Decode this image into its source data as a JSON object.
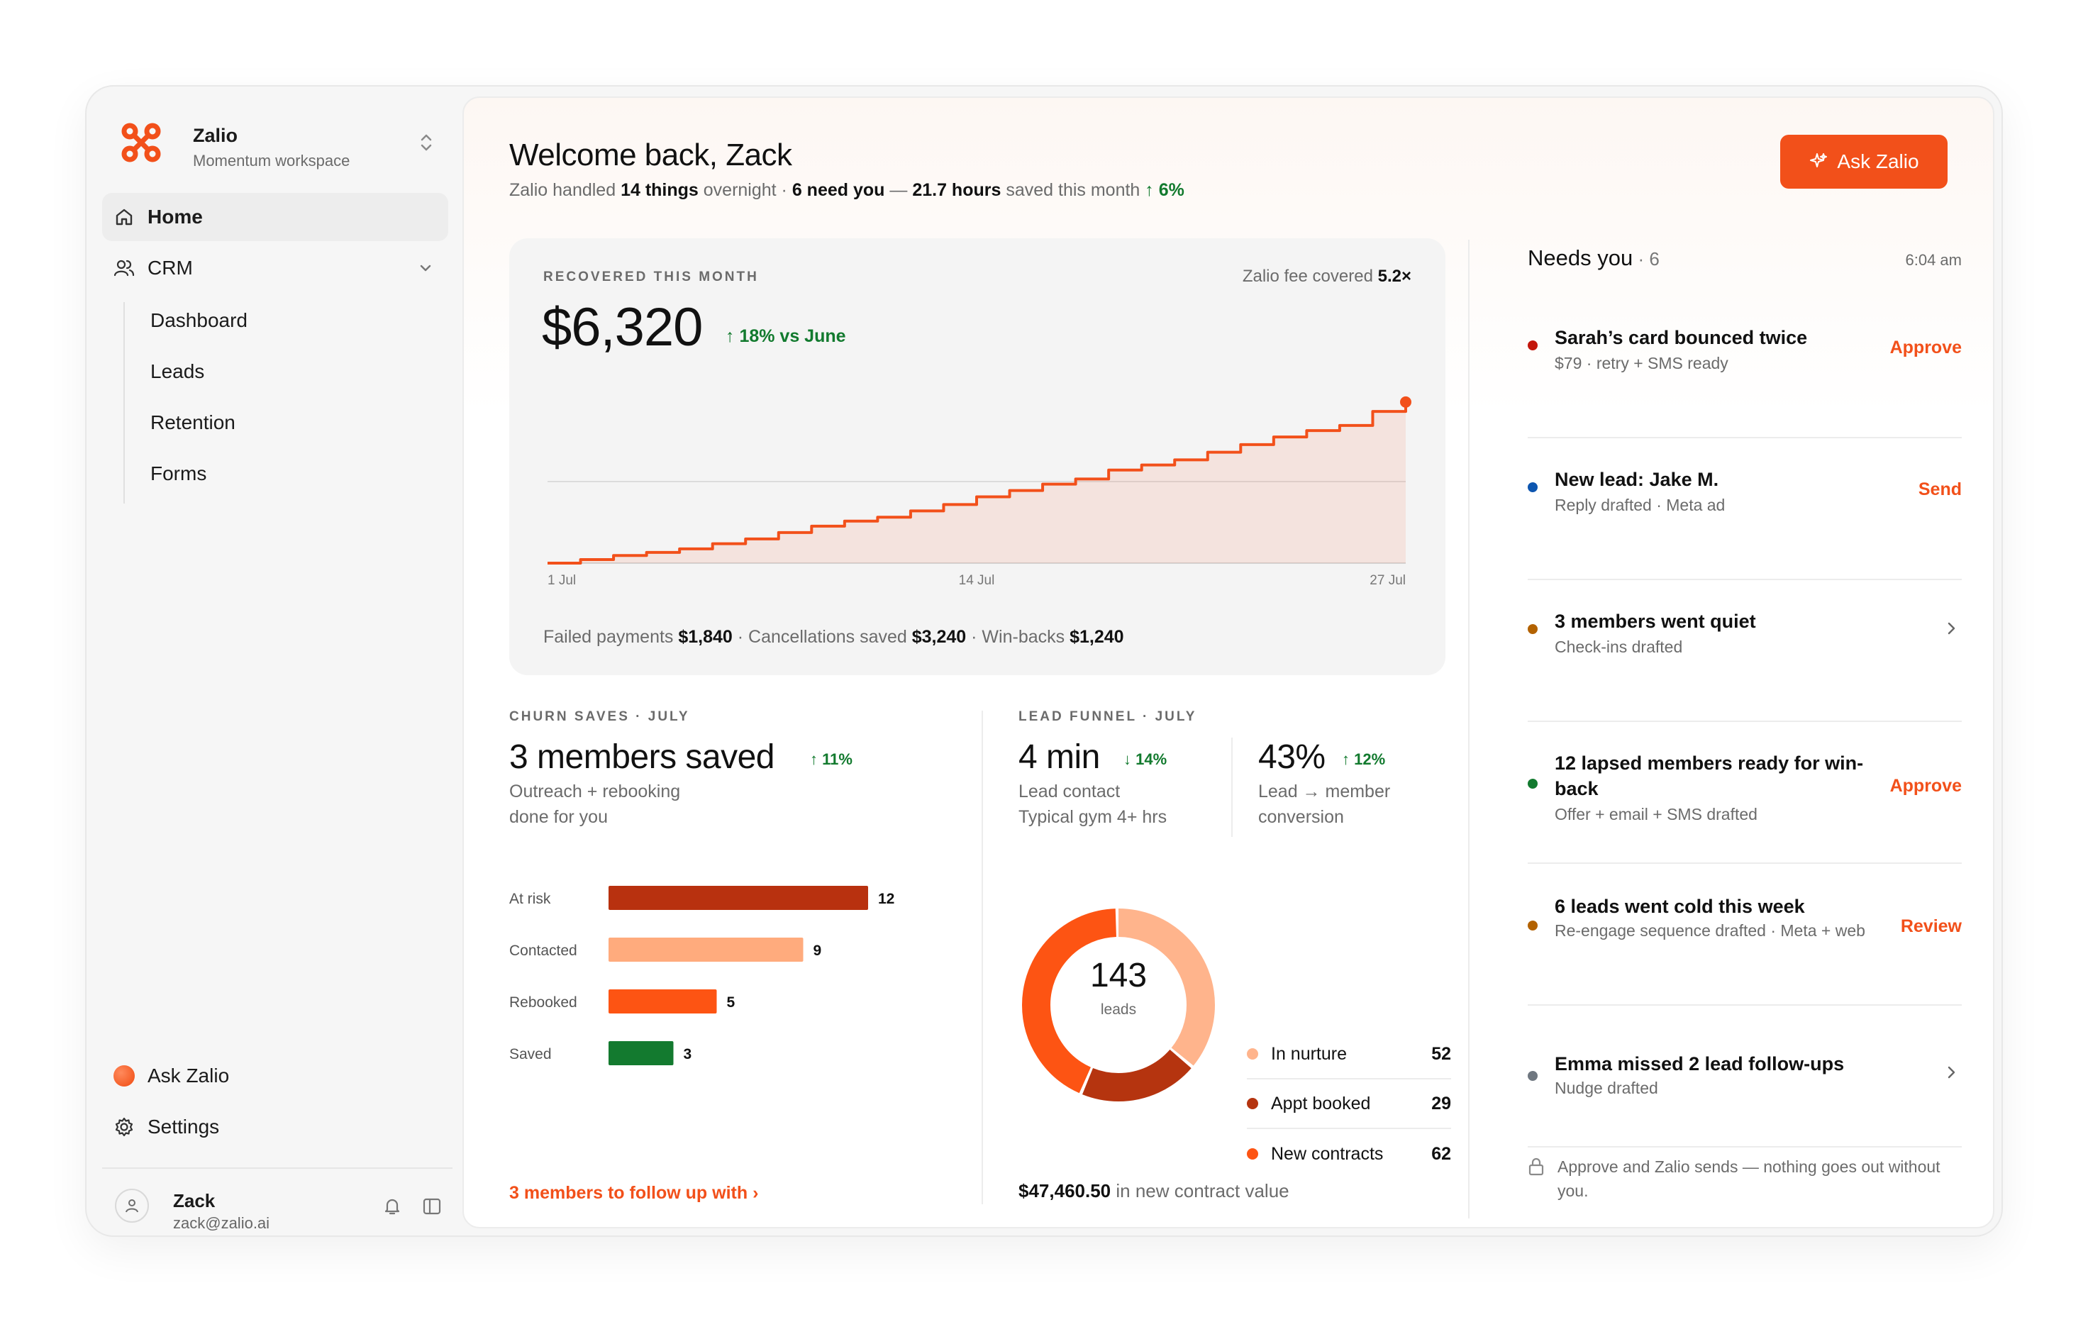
{
  "workspace": {
    "name": "Zalio",
    "subtitle": "Momentum workspace"
  },
  "nav": {
    "home": "Home",
    "crm": "CRM",
    "crm_items": [
      "Dashboard",
      "Leads",
      "Retention",
      "Forms"
    ],
    "ask": "Ask Zalio",
    "settings": "Settings"
  },
  "user": {
    "name": "Zack",
    "email": "zack@zalio.ai"
  },
  "header": {
    "title": "Welcome back, Zack",
    "sub_a": "Zalio handled ",
    "sub_b": "14 things",
    "sub_c": " overnight · ",
    "sub_d": "6 need you",
    "sub_e": " — ",
    "sub_f": "21.7 hours",
    "sub_g": " saved this month ",
    "sub_delta": "↑ 6%",
    "ask_button": "Ask Zalio"
  },
  "recovered": {
    "kicker": "RECOVERED THIS MONTH",
    "fee_label": "Zalio fee covered ",
    "fee_value": "5.2×",
    "amount": "$6,320",
    "delta": "↑ 18% vs June",
    "legend_a": "Failed payments ",
    "legend_a_v": "$1,840",
    "legend_b": " · Cancellations saved ",
    "legend_b_v": "$3,240",
    "legend_c": " · Win-backs ",
    "legend_c_v": "$1,240"
  },
  "chart_data": {
    "type": "area",
    "x": [
      1,
      2,
      3,
      4,
      5,
      6,
      7,
      8,
      9,
      10,
      11,
      12,
      13,
      14,
      15,
      16,
      17,
      18,
      19,
      20,
      21,
      22,
      23,
      24,
      25,
      26,
      27
    ],
    "x_ticks": [
      "1 Jul",
      "14 Jul",
      "27 Jul"
    ],
    "values": [
      0,
      140,
      300,
      420,
      560,
      760,
      950,
      1200,
      1450,
      1650,
      1800,
      2050,
      2300,
      2600,
      2850,
      3100,
      3300,
      3650,
      3850,
      4050,
      4350,
      4650,
      4950,
      5200,
      5400,
      5950,
      6320
    ],
    "reference_line": 3200,
    "ylim": [
      0,
      6900
    ]
  },
  "churn": {
    "kicker": "CHURN SAVES · JULY",
    "headline": "3 members saved",
    "delta": "↑ 11%",
    "desc": "Outreach + rebooking done for you",
    "bars": [
      {
        "label": "At risk",
        "value": 12,
        "color": "#b8310f"
      },
      {
        "label": "Contacted",
        "value": 9,
        "color": "#ffab7d"
      },
      {
        "label": "Rebooked",
        "value": 5,
        "color": "#fd5413"
      },
      {
        "label": "Saved",
        "value": 3,
        "color": "#137a2f"
      }
    ],
    "follow": "3 members to follow up with ›"
  },
  "funnel": {
    "kicker": "LEAD FUNNEL · JULY",
    "contact_value": "4 min",
    "contact_delta": "↓ 14%",
    "contact_desc_1": "Lead contact",
    "contact_desc_2": "Typical gym 4+ hrs",
    "conv_value": "43%",
    "conv_delta": "↑ 12%",
    "conv_desc": "Lead → member conversion",
    "total": "143",
    "total_label": "leads",
    "segments": [
      {
        "label": "In nurture",
        "value": 52,
        "color": "#ffb48c"
      },
      {
        "label": "Appt booked",
        "value": 29,
        "color": "#b5340f"
      },
      {
        "label": "New contracts",
        "value": 62,
        "color": "#fd5413"
      }
    ],
    "contract_value": "$47,460.50",
    "contract_label": " in new contract value"
  },
  "needs": {
    "title": "Needs you",
    "count": " · 6",
    "time": "6:04 am",
    "items": [
      {
        "title": "Sarah’s card bounced twice",
        "sub": "$79 · retry + SMS ready",
        "action": "Approve",
        "color": "#c3170c"
      },
      {
        "title": "New lead: Jake M.",
        "sub": "Reply drafted · Meta ad",
        "action": "Send",
        "color": "#0d56b0"
      },
      {
        "title": "3 members went quiet",
        "sub": "Check-ins drafted",
        "action": "",
        "color": "#b36200"
      },
      {
        "title": "12 lapsed members ready for win-back",
        "sub": "Offer + email + SMS drafted",
        "action": "Approve",
        "color": "#137a2f"
      },
      {
        "title": "6 leads went cold this week",
        "sub": "Re-engage sequence drafted · Meta + web",
        "action": "Review",
        "color": "#b36200"
      },
      {
        "title": "Emma missed 2 lead follow-ups",
        "sub": "Nudge drafted",
        "action": "",
        "color": "#6f7780"
      }
    ],
    "note": "Approve and Zalio sends — nothing goes out without you."
  }
}
